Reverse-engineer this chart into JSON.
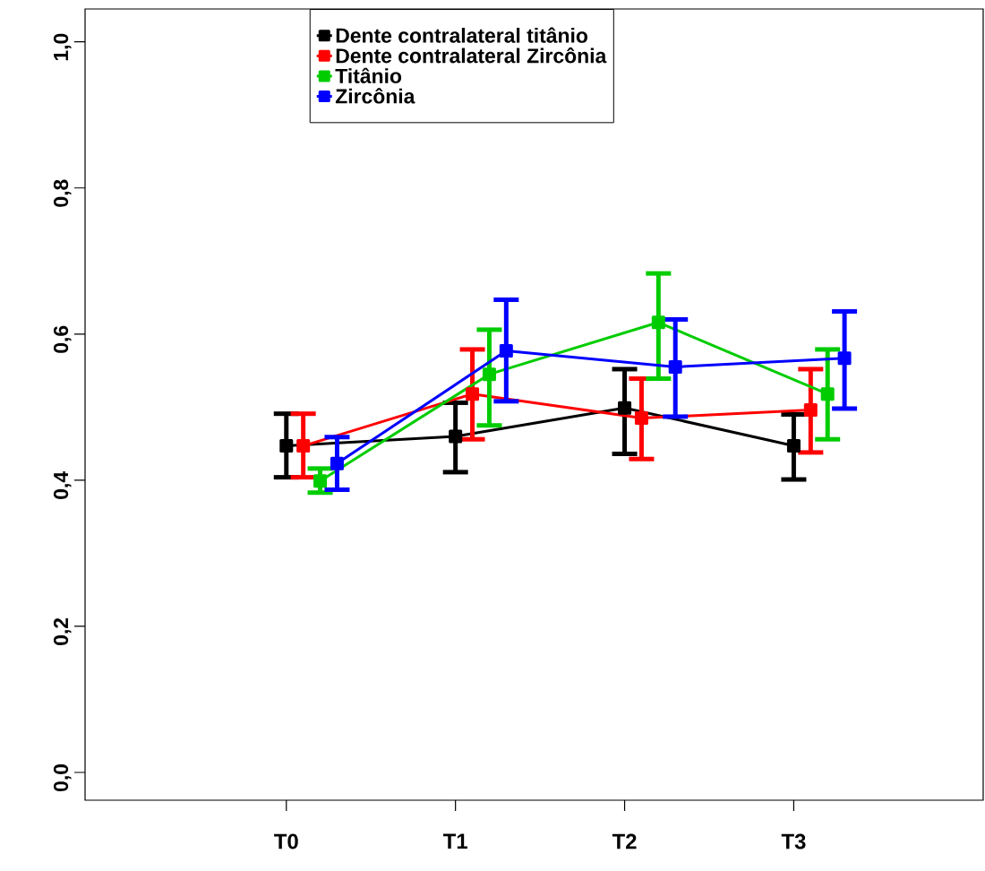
{
  "chart_data": {
    "type": "line",
    "categories": [
      "T0",
      "T1",
      "T2",
      "T3"
    ],
    "series": [
      {
        "name": "Dente contralateral titânio",
        "color": "#000000",
        "values": [
          0.447,
          0.46,
          0.499,
          0.447
        ],
        "errors": [
          [
            0.404,
            0.491
          ],
          [
            0.411,
            0.506
          ],
          [
            0.436,
            0.552
          ],
          [
            0.401,
            0.49
          ]
        ]
      },
      {
        "name": "Dente contralateral Zircônia",
        "color": "#ff0000",
        "values": [
          0.447,
          0.518,
          0.485,
          0.496
        ],
        "errors": [
          [
            0.404,
            0.491
          ],
          [
            0.456,
            0.579
          ],
          [
            0.429,
            0.539
          ],
          [
            0.438,
            0.552
          ]
        ]
      },
      {
        "name": "Titânio",
        "color": "#00cc00",
        "values": [
          0.399,
          0.545,
          0.616,
          0.518
        ],
        "errors": [
          [
            0.383,
            0.416
          ],
          [
            0.475,
            0.606
          ],
          [
            0.539,
            0.683
          ],
          [
            0.456,
            0.579
          ]
        ]
      },
      {
        "name": "Zircônia",
        "color": "#0000ff",
        "values": [
          0.423,
          0.577,
          0.555,
          0.567
        ],
        "errors": [
          [
            0.387,
            0.459
          ],
          [
            0.508,
            0.647
          ],
          [
            0.487,
            0.62
          ],
          [
            0.498,
            0.631
          ]
        ]
      }
    ],
    "ylim": [
      -0.038,
      1.045
    ],
    "yticks": [
      {
        "value": 0,
        "label": "0,0"
      },
      {
        "value": 0.2,
        "label": "0,2"
      },
      {
        "value": 0.4,
        "label": "0,4"
      },
      {
        "value": 0.6,
        "label": "0,6"
      },
      {
        "value": 0.8,
        "label": "0,8"
      },
      {
        "value": 1,
        "label": "1,0"
      }
    ],
    "grid": false,
    "legend": "top",
    "marker": "square",
    "line_style": "solid"
  }
}
